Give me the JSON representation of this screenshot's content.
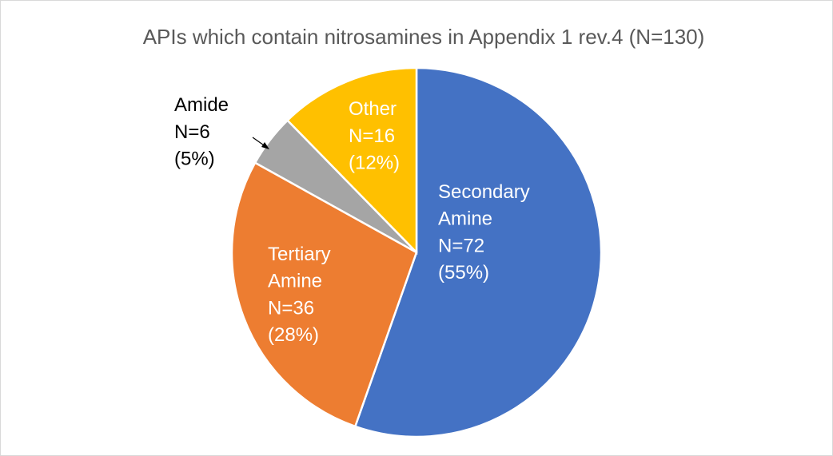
{
  "chart_data": {
    "type": "pie",
    "title": "APIs which contain nitrosamines in Appendix 1 rev.4 (N=130)",
    "categories": [
      "Secondary Amine",
      "Tertiary Amine",
      "Amide",
      "Other"
    ],
    "values": [
      72,
      36,
      6,
      16
    ],
    "value_labels": [
      "N=72",
      "N=36",
      "N=6",
      "N=16"
    ],
    "percents": [
      55,
      28,
      5,
      12
    ],
    "percent_labels": [
      "(55%)",
      "(28%)",
      "(5%)",
      "(12%)"
    ],
    "colors": [
      "#4472c4",
      "#ed7d31",
      "#a5a5a5",
      "#ffc000"
    ]
  }
}
